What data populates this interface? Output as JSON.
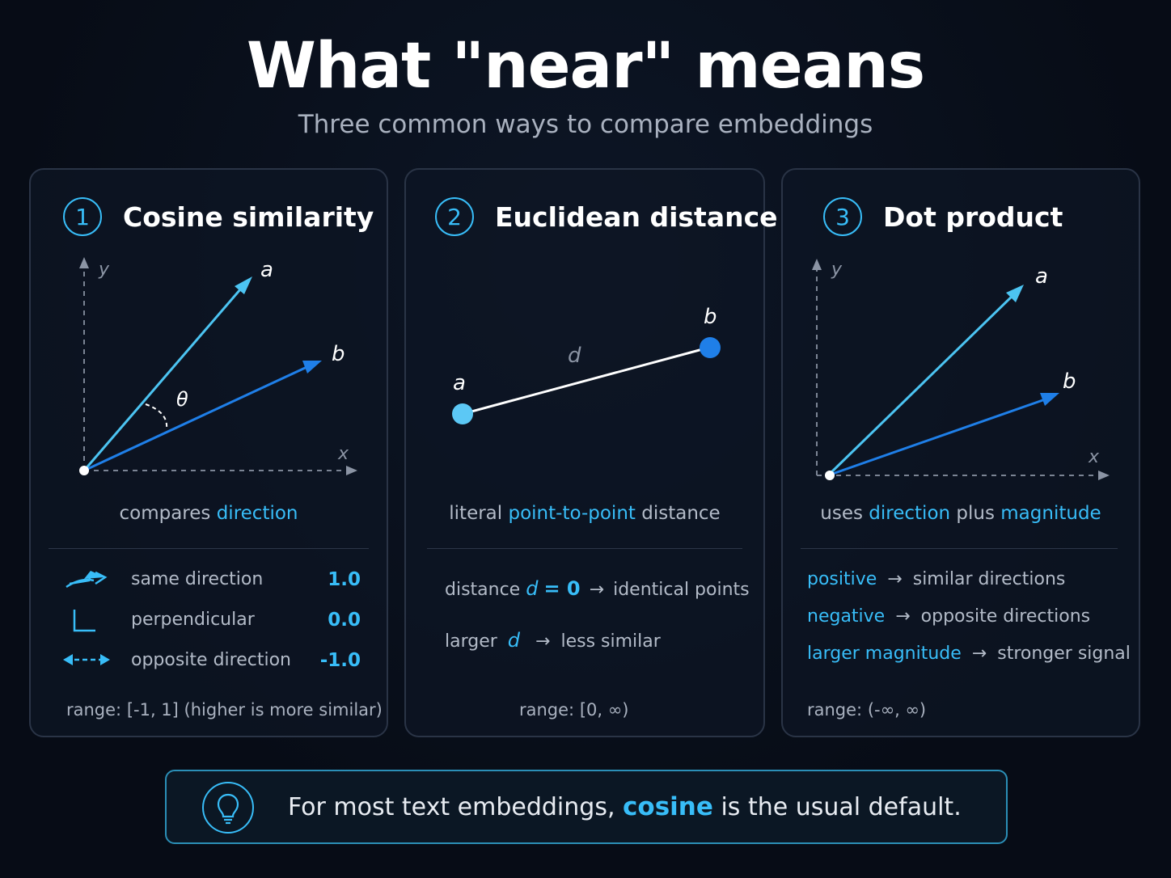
{
  "header": {
    "title": "What \"near\" means",
    "subtitle": "Three common ways to compare embeddings"
  },
  "colors": {
    "accent": "#38bdf8",
    "vector_a": "#4cc4f2",
    "vector_b": "#1f7fe8",
    "background": "#070d18"
  },
  "cards": {
    "cosine": {
      "number": "1",
      "title": "Cosine similarity",
      "labels": {
        "a": "a",
        "b": "b",
        "theta": "θ",
        "x": "x",
        "y": "y"
      },
      "caption_pre": "compares",
      "caption_hl": "direction",
      "rows": [
        {
          "icon": "same-direction-icon",
          "label": "same direction",
          "value": "1.0"
        },
        {
          "icon": "perpendicular-icon",
          "label": "perpendicular",
          "value": "0.0"
        },
        {
          "icon": "opposite-direction-icon",
          "label": "opposite direction",
          "value": "-1.0"
        }
      ],
      "range": "range: [-1, 1] (higher is more similar)"
    },
    "euclidean": {
      "number": "2",
      "title": "Euclidean distance",
      "labels": {
        "a": "a",
        "b": "b",
        "d": "d"
      },
      "caption_pre": "literal",
      "caption_hl": "point-to-point",
      "caption_post": "distance",
      "row1": {
        "pre": "distance",
        "var": "d",
        "eq": "= 0",
        "arrow": "→",
        "post": "identical points"
      },
      "row2": {
        "pre": "larger",
        "var": "d",
        "arrow": "→",
        "post": "less similar"
      },
      "range": "range: [0, ∞)"
    },
    "dot": {
      "number": "3",
      "title": "Dot product",
      "labels": {
        "a": "a",
        "b": "b",
        "x": "x",
        "y": "y"
      },
      "caption_pre": "uses",
      "caption_hl1": "direction",
      "caption_mid": "plus",
      "caption_hl2": "magnitude",
      "rows": [
        {
          "term": "positive",
          "arrow": "→",
          "desc": "similar directions"
        },
        {
          "term": "negative",
          "arrow": "→",
          "desc": "opposite directions"
        },
        {
          "term": "larger magnitude",
          "arrow": "→",
          "desc": "stronger signal"
        }
      ],
      "range": "range:  (-∞, ∞)"
    }
  },
  "tip": {
    "icon": "lightbulb-icon",
    "text_pre": "For most text embeddings,",
    "text_hl": "cosine",
    "text_post": "is the usual default."
  }
}
